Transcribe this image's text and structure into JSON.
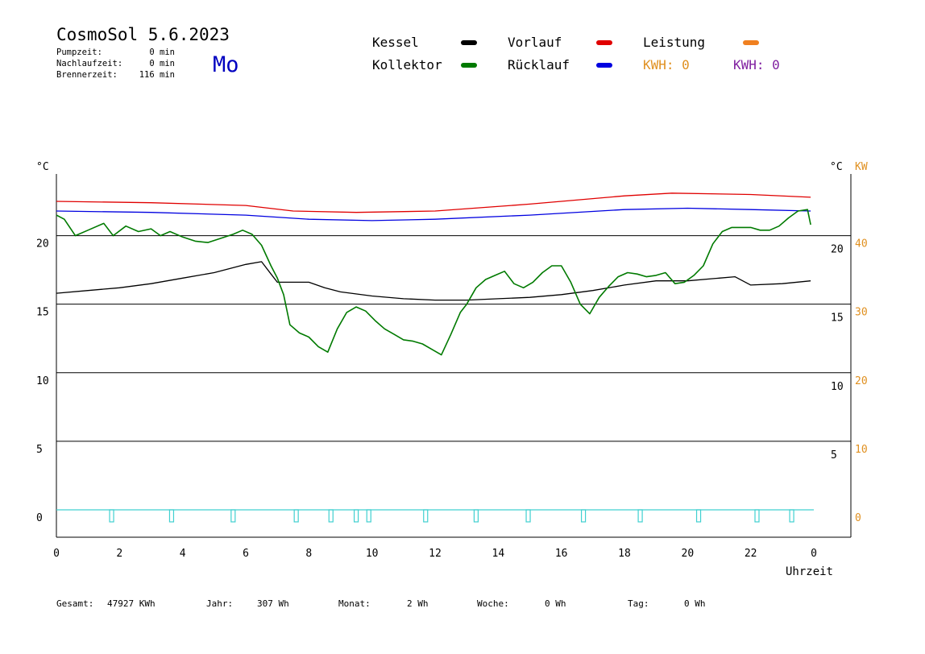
{
  "header": {
    "title": "CosmoSol 5.6.2023",
    "weekday": "Mo",
    "stats": [
      {
        "label": "Pumpzeit:",
        "value": "0 min"
      },
      {
        "label": "Nachlaufzeit:",
        "value": "0 min"
      },
      {
        "label": "Brennerzeit:",
        "value": "116 min"
      }
    ]
  },
  "legend": {
    "items": [
      {
        "label": "Kessel",
        "color": "#000000"
      },
      {
        "label": "Vorlauf",
        "color": "#e00000"
      },
      {
        "label": "Leistung",
        "color": "#f08020"
      },
      {
        "label": "Kollektor",
        "color": "#007a00"
      },
      {
        "label": "Rücklauf",
        "color": "#0000e0"
      }
    ],
    "kwh": [
      {
        "label": "KWH: 0",
        "color": "#e09020"
      },
      {
        "label": "KWH: 0",
        "color": "#8020a0"
      }
    ]
  },
  "axes": {
    "left_unit": "°C",
    "right_unit": "°C",
    "kw_unit": "KW",
    "xlabel": "Uhrzeit",
    "left_ticks": [
      "20",
      "15",
      "10",
      "5",
      "0"
    ],
    "right_ticks": [
      "20",
      "15",
      "10",
      "5"
    ],
    "kw_ticks": [
      "40",
      "30",
      "20",
      "10",
      "0"
    ],
    "x_ticks": [
      "0",
      "2",
      "4",
      "6",
      "8",
      "10",
      "12",
      "14",
      "16",
      "18",
      "20",
      "22",
      "0"
    ]
  },
  "footer": [
    {
      "label": "Gesamt:",
      "value": "47927 KWh"
    },
    {
      "label": "Jahr:",
      "value": "307 Wh"
    },
    {
      "label": "Monat:",
      "value": "2 Wh"
    },
    {
      "label": "Woche:",
      "value": "0 Wh"
    },
    {
      "label": "Tag:",
      "value": "0 Wh"
    }
  ],
  "chart_data": {
    "type": "line",
    "xlim": [
      0,
      24
    ],
    "ylim": [
      -2,
      24.5
    ],
    "kw_ylim": [
      -4,
      49
    ],
    "grid_y": [
      0,
      5,
      10,
      15,
      20
    ],
    "series": [
      {
        "name": "Vorlauf",
        "color": "#e00000",
        "x": [
          0,
          3,
          6,
          7.5,
          9.5,
          12,
          15,
          18,
          19.5,
          22,
          23.9
        ],
        "y": [
          22.5,
          22.4,
          22.2,
          21.8,
          21.7,
          21.8,
          22.3,
          22.9,
          23.1,
          23.0,
          22.8
        ]
      },
      {
        "name": "Rücklauf",
        "color": "#0000e0",
        "x": [
          0,
          3,
          6,
          8,
          10,
          12,
          15,
          18,
          20,
          22,
          23.9
        ],
        "y": [
          21.8,
          21.7,
          21.5,
          21.2,
          21.1,
          21.2,
          21.5,
          21.9,
          22.0,
          21.9,
          21.8
        ]
      },
      {
        "name": "Kessel",
        "color": "#000000",
        "x": [
          0,
          1,
          2,
          3,
          4,
          5,
          5.5,
          6,
          6.5,
          6.8,
          7,
          8,
          8.5,
          9,
          10,
          11,
          12,
          13,
          14,
          15,
          16,
          17,
          18,
          19,
          20,
          21,
          21.5,
          22,
          23,
          23.9
        ],
        "y": [
          15.8,
          16.0,
          16.2,
          16.5,
          16.9,
          17.3,
          17.6,
          17.9,
          18.1,
          17.2,
          16.6,
          16.6,
          16.2,
          15.9,
          15.6,
          15.4,
          15.3,
          15.3,
          15.4,
          15.5,
          15.7,
          16.0,
          16.4,
          16.7,
          16.7,
          16.9,
          17.0,
          16.4,
          16.5,
          16.7
        ]
      },
      {
        "name": "Kollektor",
        "color": "#007a00",
        "x": [
          0,
          0.25,
          0.6,
          1.0,
          1.5,
          1.8,
          2.2,
          2.6,
          3.0,
          3.3,
          3.6,
          4.0,
          4.4,
          4.8,
          5.2,
          5.6,
          5.9,
          6.2,
          6.5,
          6.8,
          7.0,
          7.2,
          7.4,
          7.7,
          8.0,
          8.3,
          8.6,
          8.9,
          9.2,
          9.5,
          9.8,
          10.1,
          10.4,
          10.7,
          11.0,
          11.3,
          11.6,
          11.9,
          12.2,
          12.5,
          12.8,
          13.0,
          13.3,
          13.6,
          13.9,
          14.2,
          14.5,
          14.8,
          15.1,
          15.4,
          15.7,
          16.0,
          16.3,
          16.6,
          16.9,
          17.2,
          17.5,
          17.8,
          18.1,
          18.4,
          18.7,
          19.0,
          19.3,
          19.6,
          19.9,
          20.2,
          20.5,
          20.8,
          21.1,
          21.4,
          21.7,
          22.0,
          22.3,
          22.6,
          22.9,
          23.2,
          23.5,
          23.8,
          23.9
        ],
        "y": [
          21.5,
          21.2,
          20.0,
          20.4,
          20.9,
          20.0,
          20.7,
          20.3,
          20.5,
          20.0,
          20.3,
          19.9,
          19.6,
          19.5,
          19.8,
          20.1,
          20.4,
          20.1,
          19.3,
          17.8,
          16.9,
          15.7,
          13.5,
          12.9,
          12.6,
          11.9,
          11.5,
          13.2,
          14.4,
          14.8,
          14.5,
          13.8,
          13.2,
          12.8,
          12.4,
          12.3,
          12.1,
          11.7,
          11.3,
          12.8,
          14.4,
          15.0,
          16.2,
          16.8,
          17.1,
          17.4,
          16.5,
          16.2,
          16.6,
          17.3,
          17.8,
          17.8,
          16.6,
          15.0,
          14.3,
          15.5,
          16.3,
          17.0,
          17.3,
          17.2,
          17.0,
          17.1,
          17.3,
          16.5,
          16.6,
          17.1,
          17.8,
          19.4,
          20.3,
          20.6,
          20.6,
          20.6,
          20.4,
          20.4,
          20.7,
          21.3,
          21.8,
          21.9,
          20.8
        ]
      },
      {
        "name": "Leistung",
        "color": "#40d0d0",
        "x": [
          0,
          24
        ],
        "y": [
          0,
          0
        ]
      }
    ],
    "burner_pulses_x": [
      1.75,
      3.65,
      5.6,
      7.6,
      8.7,
      9.5,
      9.9,
      11.7,
      13.3,
      14.95,
      16.7,
      18.5,
      20.35,
      22.2,
      23.3
    ]
  }
}
